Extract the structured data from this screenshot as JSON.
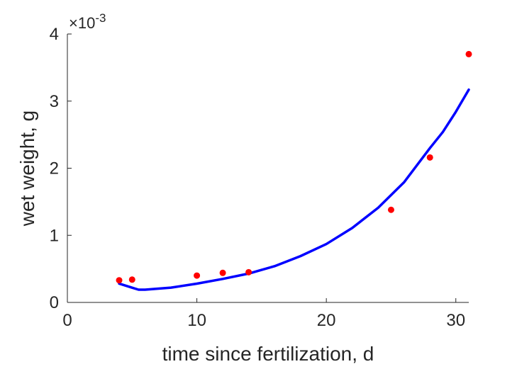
{
  "chart_data": {
    "type": "scatter",
    "title": "",
    "xlabel": "time since fertilization, d",
    "ylabel": "wet weight, g",
    "xlim": [
      0,
      31
    ],
    "ylim": [
      0,
      0.004
    ],
    "xticks": [
      0,
      10,
      20,
      30
    ],
    "yticks": [
      0,
      0.001,
      0.002,
      0.003,
      0.004
    ],
    "ytick_labels": [
      "0",
      "1",
      "2",
      "3",
      "4"
    ],
    "y_exponent_label": {
      "base": "×10",
      "exponent": "-3"
    },
    "grid": false,
    "series": [
      {
        "kind": "points",
        "color": "#ff0000",
        "x": [
          4,
          5,
          10,
          12,
          14,
          25,
          28,
          31
        ],
        "y": [
          0.00033,
          0.00034,
          0.0004,
          0.00044,
          0.00045,
          0.00138,
          0.00216,
          0.0037
        ]
      },
      {
        "kind": "line",
        "color": "#0000ff",
        "x": [
          4,
          4.5,
          5,
          5.5,
          6,
          8,
          10,
          12,
          14,
          16,
          18,
          20,
          22,
          24,
          26,
          28,
          29,
          30,
          31
        ],
        "y": [
          0.00028,
          0.00025,
          0.00022,
          0.00019,
          0.00019,
          0.00022,
          0.00028,
          0.00035,
          0.00043,
          0.00054,
          0.00069,
          0.00087,
          0.00111,
          0.00141,
          0.00179,
          0.0023,
          0.00254,
          0.00284,
          0.00317
        ]
      }
    ]
  }
}
